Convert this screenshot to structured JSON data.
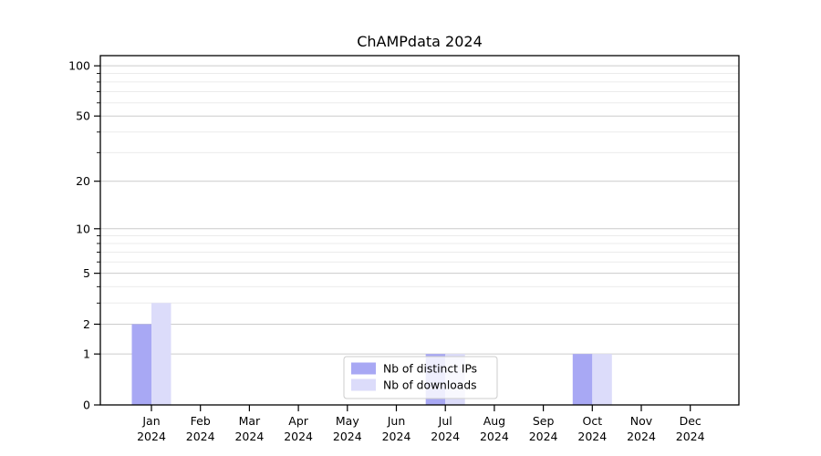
{
  "chart_data": {
    "type": "bar",
    "title": "ChAMPdata 2024",
    "categories": [
      "Jan",
      "Feb",
      "Mar",
      "Apr",
      "May",
      "Jun",
      "Jul",
      "Aug",
      "Sep",
      "Oct",
      "Nov",
      "Dec"
    ],
    "category_year": "2024",
    "series": [
      {
        "name": "Nb of distinct IPs",
        "color": "#a8a8f4",
        "values": [
          2,
          0,
          0,
          0,
          0,
          0,
          1,
          0,
          0,
          1,
          0,
          0
        ]
      },
      {
        "name": "Nb of downloads",
        "color": "#dcdcfa",
        "values": [
          3,
          0,
          0,
          0,
          0,
          0,
          1,
          0,
          0,
          1,
          0,
          0
        ]
      }
    ],
    "yscale": "log1p",
    "yticks": [
      0,
      1,
      2,
      5,
      10,
      20,
      50,
      100
    ],
    "yticks_minor": [
      3,
      4,
      6,
      7,
      8,
      9,
      30,
      40,
      60,
      70,
      80,
      90
    ],
    "ylim": [
      0,
      114
    ],
    "xlabel": "",
    "ylabel": "",
    "grid": "horizontal",
    "legend_position": "lower center",
    "colors": {
      "grid_major": "#cccccc",
      "grid_minor": "#ebebeb",
      "axis": "#000000",
      "legend_border": "#cccccc",
      "legend_bg": "#ffffff"
    }
  }
}
